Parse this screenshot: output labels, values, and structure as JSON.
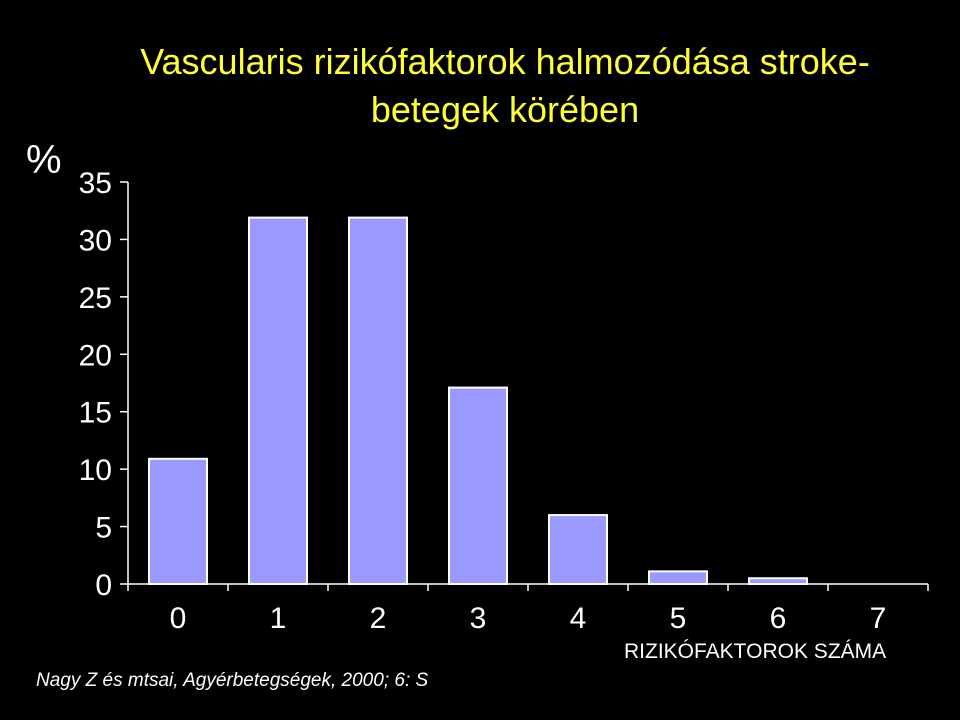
{
  "chart_data": {
    "type": "bar",
    "title_lines": [
      "Vascularis rizikófaktorok halmozódása stroke-",
      "betegek körében"
    ],
    "ylabel": "%",
    "xlabel": "RIZIKÓFAKTOROK SZÁMA",
    "categories": [
      "0",
      "1",
      "2",
      "3",
      "4",
      "5",
      "6",
      "7"
    ],
    "values": [
      10.9,
      31.9,
      31.9,
      17.1,
      6.0,
      1.1,
      0.5,
      0
    ],
    "ylim": [
      0,
      35
    ],
    "yticks": [
      0,
      5,
      10,
      15,
      20,
      25,
      30,
      35
    ],
    "grid": false,
    "legend": "none",
    "bar_color": "#9999ff",
    "bar_border_color": "#ffffff",
    "axis_color": "#ffffff",
    "title_color": "#ffff33",
    "background_color": "#000000"
  },
  "source_note": "Nagy Z és mtsai, Agyérbetegségek, 2000; 6: S"
}
